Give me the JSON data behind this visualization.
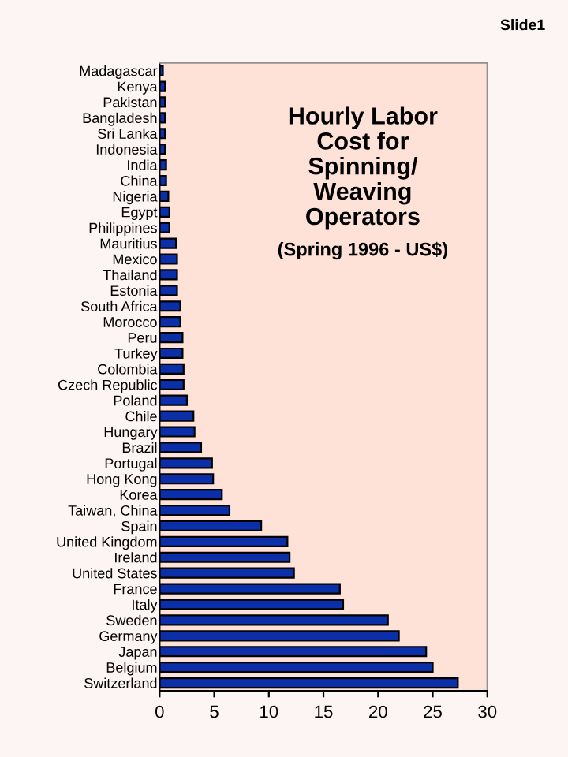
{
  "chart_data": {
    "type": "bar",
    "orientation": "horizontal",
    "title": "Hourly Labor\nCost for\nSpinning/\nWeaving\nOperators",
    "subtitle": "(Spring 1996 - US$)",
    "annotations": [
      "Slide1"
    ],
    "categories": [
      "Madagascar",
      "Kenya",
      "Pakistan",
      "Bangladesh",
      "Sri Lanka",
      "Indonesia",
      "India",
      "China",
      "Nigeria",
      "Egypt",
      "Philippines",
      "Mauritius",
      "Mexico",
      "Thailand",
      "Estonia",
      "South Africa",
      "Morocco",
      "Peru",
      "Turkey",
      "Colombia",
      "Czech Republic",
      "Poland",
      "Chile",
      "Hungary",
      "Brazil",
      "Portugal",
      "Hong Kong",
      "Korea",
      "Taiwan, China",
      "Spain",
      "United Kingdom",
      "Ireland",
      "United States",
      "France",
      "Italy",
      "Sweden",
      "Germany",
      "Japan",
      "Belgium",
      "Switzerland"
    ],
    "values": [
      0.3,
      0.5,
      0.5,
      0.5,
      0.5,
      0.5,
      0.6,
      0.6,
      0.8,
      0.9,
      0.9,
      1.5,
      1.6,
      1.6,
      1.6,
      1.9,
      1.9,
      2.1,
      2.1,
      2.2,
      2.2,
      2.5,
      3.1,
      3.2,
      3.8,
      4.8,
      4.9,
      5.7,
      6.4,
      9.3,
      11.7,
      11.9,
      12.3,
      16.5,
      16.8,
      20.9,
      21.9,
      24.4,
      25.0,
      27.3
    ],
    "color": "#0b2fa8",
    "xlim": [
      0,
      30
    ],
    "xticks": [
      0,
      5,
      10,
      15,
      20,
      25,
      30
    ],
    "grid": false,
    "legend": false
  }
}
